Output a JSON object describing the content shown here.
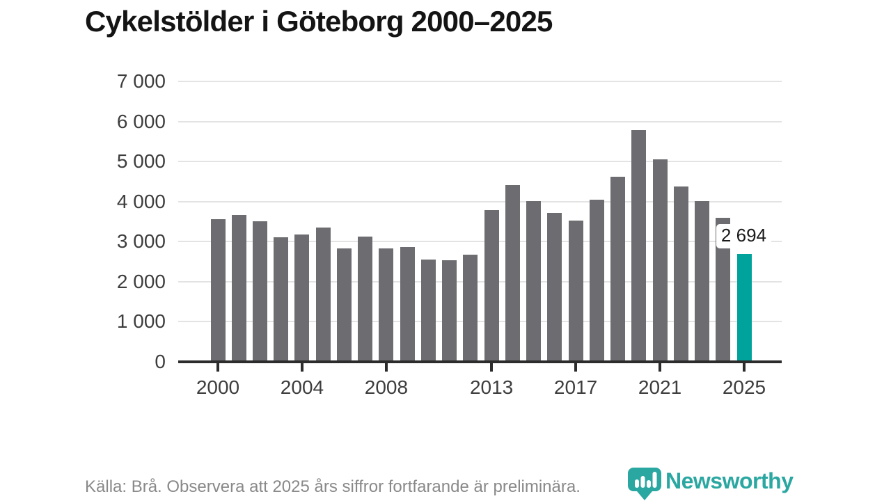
{
  "title": "Cykelstölder i Göteborg 2000–2025",
  "chart_data": {
    "type": "bar",
    "title": "Cykelstölder i Göteborg 2000–2025",
    "categories": [
      2000,
      2001,
      2002,
      2003,
      2004,
      2005,
      2006,
      2007,
      2008,
      2009,
      2010,
      2011,
      2012,
      2013,
      2014,
      2015,
      2016,
      2017,
      2018,
      2019,
      2020,
      2021,
      2022,
      2023,
      2024,
      2025
    ],
    "values": [
      3560,
      3660,
      3510,
      3110,
      3180,
      3350,
      2830,
      3120,
      2830,
      2860,
      2550,
      2540,
      2670,
      3790,
      4410,
      4020,
      3720,
      3530,
      4050,
      4620,
      5780,
      5050,
      4380,
      4020,
      3590,
      2694
    ],
    "highlight_category": 2025,
    "highlight_value": 2694,
    "highlight_label": "2 694",
    "xlabel": "",
    "ylabel": "",
    "ylim": [
      0,
      7000
    ],
    "ytick_values": [
      0,
      1000,
      2000,
      3000,
      4000,
      5000,
      6000,
      7000
    ],
    "ytick_labels": [
      "0",
      "1 000",
      "2 000",
      "3 000",
      "4 000",
      "5 000",
      "6 000",
      "7 000"
    ],
    "xtick_values": [
      2000,
      2004,
      2008,
      2013,
      2017,
      2021,
      2025
    ],
    "xtick_labels": [
      "2000",
      "2004",
      "2008",
      "2013",
      "2017",
      "2021",
      "2025"
    ],
    "grid": true,
    "legend": false,
    "bar_color": "#6d6d71",
    "highlight_color": "#00a39c"
  },
  "footer": {
    "source": "Källa: Brå. Observera att 2025 års siffror fortfarande är preliminära.",
    "brand": "Newsworthy"
  },
  "colors": {
    "bar": "#6d6d71",
    "highlight": "#00a39c",
    "brand_teal": "#2ba7a1",
    "axis": "#2c2c2c",
    "grid": "#e3e3e3",
    "tick_text": "#3d3d3d",
    "muted_text": "#898989",
    "title_text": "#141414"
  }
}
